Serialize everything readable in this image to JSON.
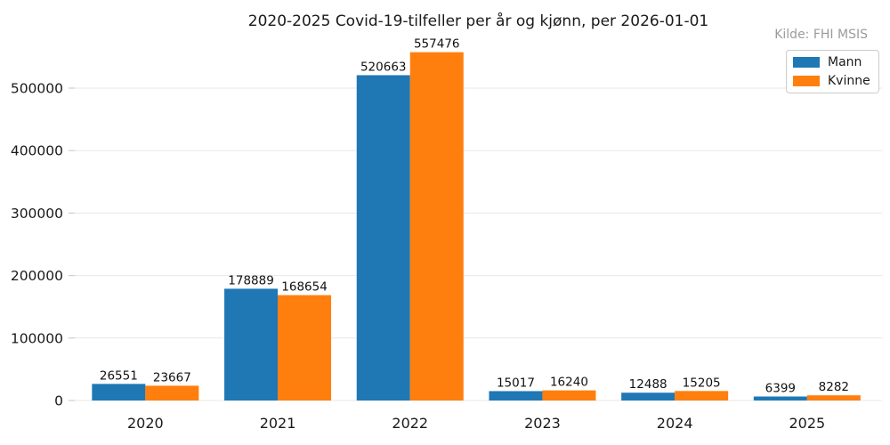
{
  "chart_data": {
    "type": "bar",
    "title": "2020-2025 Covid-19-tilfeller per år og kjønn, per 2026-01-01",
    "annotation": "Kilde: FHI MSIS",
    "categories": [
      "2020",
      "2021",
      "2022",
      "2023",
      "2024",
      "2025"
    ],
    "series": [
      {
        "name": "Mann",
        "color": "#1f77b4",
        "values": [
          26551,
          178889,
          520663,
          15017,
          12488,
          6399
        ]
      },
      {
        "name": "Kvinne",
        "color": "#ff7f0e",
        "values": [
          23667,
          168654,
          557476,
          16240,
          15205,
          8282
        ]
      }
    ],
    "xlabel": "",
    "ylabel": "",
    "yticks": [
      0,
      100000,
      200000,
      300000,
      400000,
      500000
    ],
    "ylim": [
      0,
      585000
    ],
    "grid": "horizontal",
    "bar_value_labels": true,
    "legend_position": "upper right",
    "colors": {
      "gridline": "#e7e7e7",
      "tick_mark": "#cfcfcf",
      "text": "#1a1a1a",
      "annotation_text": "#9b9b9b",
      "legend_border": "#cccccc",
      "background": "#ffffff"
    }
  }
}
